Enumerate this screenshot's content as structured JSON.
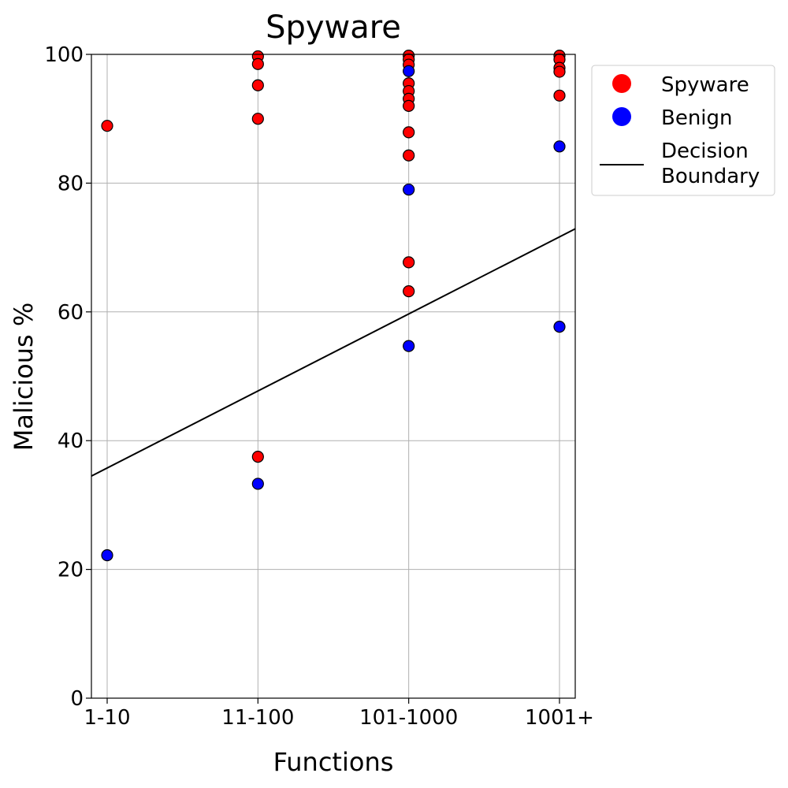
{
  "chart_data": {
    "type": "scatter",
    "title": "Spyware",
    "xlabel": "Functions",
    "ylabel": "Malicious %",
    "categories": [
      "1-10",
      "11-100",
      "101-1000",
      "1001+"
    ],
    "ylim": [
      0,
      100
    ],
    "yticks": [
      0,
      20,
      40,
      60,
      80,
      100
    ],
    "grid": true,
    "legend": {
      "placement": "outside-top-right"
    },
    "series": [
      {
        "name": "Spyware",
        "color": "#ff0000",
        "points": [
          {
            "x": "1-10",
            "y": 88.9
          },
          {
            "x": "11-100",
            "y": 99.7
          },
          {
            "x": "11-100",
            "y": 98.5
          },
          {
            "x": "11-100",
            "y": 95.2
          },
          {
            "x": "11-100",
            "y": 90.0
          },
          {
            "x": "11-100",
            "y": 37.5
          },
          {
            "x": "101-1000",
            "y": 99.8
          },
          {
            "x": "101-1000",
            "y": 99.2
          },
          {
            "x": "101-1000",
            "y": 98.4
          },
          {
            "x": "101-1000",
            "y": 95.5
          },
          {
            "x": "101-1000",
            "y": 94.3
          },
          {
            "x": "101-1000",
            "y": 93.1
          },
          {
            "x": "101-1000",
            "y": 92.0
          },
          {
            "x": "101-1000",
            "y": 87.9
          },
          {
            "x": "101-1000",
            "y": 84.3
          },
          {
            "x": "101-1000",
            "y": 67.7
          },
          {
            "x": "101-1000",
            "y": 63.2
          },
          {
            "x": "1001+",
            "y": 99.8
          },
          {
            "x": "1001+",
            "y": 99.2
          },
          {
            "x": "1001+",
            "y": 97.9
          },
          {
            "x": "1001+",
            "y": 97.3
          },
          {
            "x": "1001+",
            "y": 93.6
          }
        ]
      },
      {
        "name": "Benign",
        "color": "#0000ff",
        "points": [
          {
            "x": "1-10",
            "y": 22.2
          },
          {
            "x": "11-100",
            "y": 33.3
          },
          {
            "x": "101-1000",
            "y": 97.4
          },
          {
            "x": "101-1000",
            "y": 79.0
          },
          {
            "x": "101-1000",
            "y": 54.7
          },
          {
            "x": "1001+",
            "y": 85.7
          },
          {
            "x": "1001+",
            "y": 57.7
          }
        ]
      }
    ],
    "decision_boundary": {
      "name": "Decision Boundary",
      "name_lines": [
        "Decision",
        "Boundary"
      ],
      "color": "#000000",
      "left_y": 34.5,
      "right_y": 72.9
    }
  }
}
